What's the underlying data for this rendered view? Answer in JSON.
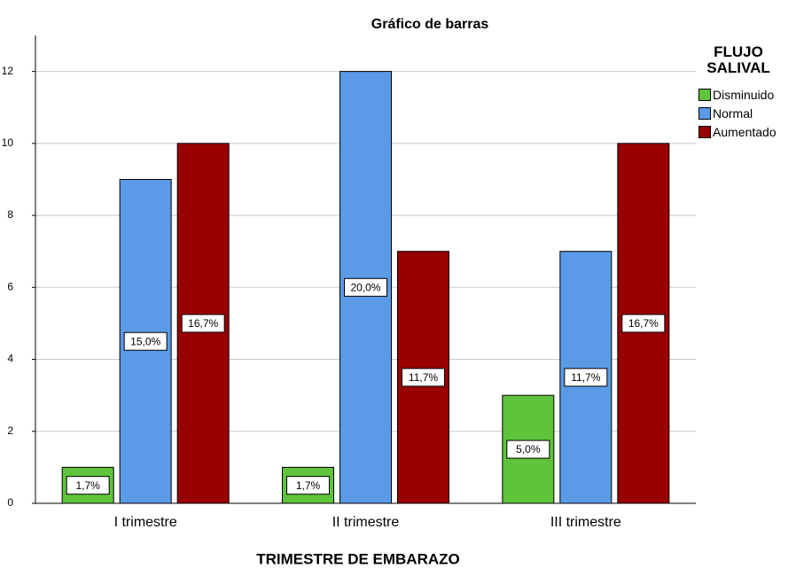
{
  "chart_data": {
    "type": "bar",
    "title": "Gráfico de barras",
    "x_label": "TRIMESTRE DE EMBARAZO",
    "legend_title": "FLUJO SALIVAL",
    "categories": [
      "I trimestre",
      "II trimestre",
      "III trimestre"
    ],
    "series": [
      {
        "name": "Disminuido",
        "color": "#5fc43a",
        "values": [
          1,
          1,
          3
        ],
        "value_labels": [
          "1,7%",
          "1,7%",
          "5,0%"
        ]
      },
      {
        "name": "Normal",
        "color": "#5a9ae6",
        "values": [
          9,
          12,
          7
        ],
        "value_labels": [
          "15,0%",
          "20,0%",
          "11,7%"
        ]
      },
      {
        "name": "Aumentado",
        "color": "#990000",
        "values": [
          10,
          7,
          10
        ],
        "value_labels": [
          "16,7%",
          "11,7%",
          "16,7%"
        ]
      }
    ],
    "ylim": [
      0,
      13
    ],
    "yticks": [
      0,
      2,
      4,
      6,
      8,
      10,
      12
    ],
    "grid": true,
    "legend": "right"
  }
}
